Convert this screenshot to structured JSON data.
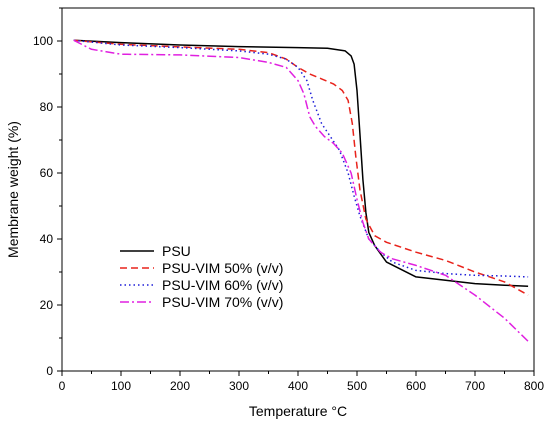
{
  "chart_data": {
    "type": "line",
    "title": "",
    "xlabel": "Temperature °C",
    "ylabel": "Membrane weight (%)",
    "xlim": [
      0,
      800
    ],
    "ylim": [
      0,
      110
    ],
    "xticks": [
      0,
      100,
      200,
      300,
      400,
      500,
      600,
      700,
      800
    ],
    "yticks": [
      0,
      20,
      40,
      60,
      80,
      100
    ],
    "grid": false,
    "legend_position": "lower-left",
    "series": [
      {
        "name": "PSU",
        "color": "#000000",
        "dash": "solid",
        "points": [
          [
            20,
            100.2
          ],
          [
            100,
            99.5
          ],
          [
            200,
            98.8
          ],
          [
            300,
            98.3
          ],
          [
            400,
            98.0
          ],
          [
            450,
            97.8
          ],
          [
            480,
            97.0
          ],
          [
            490,
            95.5
          ],
          [
            495,
            93
          ],
          [
            500,
            85
          ],
          [
            505,
            72
          ],
          [
            510,
            58
          ],
          [
            515,
            48
          ],
          [
            520,
            42
          ],
          [
            530,
            38
          ],
          [
            550,
            33
          ],
          [
            600,
            28.5
          ],
          [
            650,
            27.5
          ],
          [
            700,
            26.5
          ],
          [
            750,
            26
          ],
          [
            790,
            25.7
          ]
        ]
      },
      {
        "name": "PSU-VIM 50% (v/v)",
        "color": "#e8231c",
        "dash": "dashed",
        "points": [
          [
            20,
            100.2
          ],
          [
            100,
            99.0
          ],
          [
            200,
            98.2
          ],
          [
            300,
            97.5
          ],
          [
            350,
            96.5
          ],
          [
            380,
            94.5
          ],
          [
            400,
            92
          ],
          [
            420,
            90
          ],
          [
            440,
            88.5
          ],
          [
            460,
            87
          ],
          [
            475,
            85
          ],
          [
            485,
            82
          ],
          [
            492,
            75
          ],
          [
            498,
            65
          ],
          [
            505,
            55
          ],
          [
            515,
            46
          ],
          [
            530,
            41
          ],
          [
            550,
            39
          ],
          [
            600,
            36
          ],
          [
            650,
            33.5
          ],
          [
            700,
            30
          ],
          [
            750,
            27
          ],
          [
            790,
            23
          ]
        ]
      },
      {
        "name": "PSU-VIM 60% (v/v)",
        "color": "#1d1dd8",
        "dash": "dotted",
        "points": [
          [
            20,
            100.2
          ],
          [
            100,
            98.8
          ],
          [
            200,
            98.0
          ],
          [
            300,
            97.0
          ],
          [
            350,
            96
          ],
          [
            380,
            94.5
          ],
          [
            400,
            92
          ],
          [
            415,
            88
          ],
          [
            425,
            82
          ],
          [
            440,
            75
          ],
          [
            455,
            71
          ],
          [
            470,
            67
          ],
          [
            485,
            60
          ],
          [
            495,
            53
          ],
          [
            505,
            47
          ],
          [
            520,
            40
          ],
          [
            540,
            36
          ],
          [
            560,
            33
          ],
          [
            600,
            30.5
          ],
          [
            650,
            29.5
          ],
          [
            700,
            29
          ],
          [
            750,
            28.8
          ],
          [
            790,
            28.5
          ]
        ]
      },
      {
        "name": "PSU-VIM 70% (v/v)",
        "color": "#e020e0",
        "dash": "dashdot",
        "points": [
          [
            20,
            100.2
          ],
          [
            50,
            97.5
          ],
          [
            100,
            96.0
          ],
          [
            200,
            95.8
          ],
          [
            300,
            95.0
          ],
          [
            350,
            93.5
          ],
          [
            380,
            92
          ],
          [
            400,
            88
          ],
          [
            410,
            84
          ],
          [
            420,
            77
          ],
          [
            430,
            74
          ],
          [
            445,
            71
          ],
          [
            460,
            69
          ],
          [
            475,
            66
          ],
          [
            490,
            60
          ],
          [
            500,
            52
          ],
          [
            510,
            45
          ],
          [
            520,
            40
          ],
          [
            540,
            36
          ],
          [
            560,
            34
          ],
          [
            600,
            32
          ],
          [
            650,
            29
          ],
          [
            700,
            23
          ],
          [
            750,
            16
          ],
          [
            790,
            9
          ]
        ]
      }
    ]
  }
}
